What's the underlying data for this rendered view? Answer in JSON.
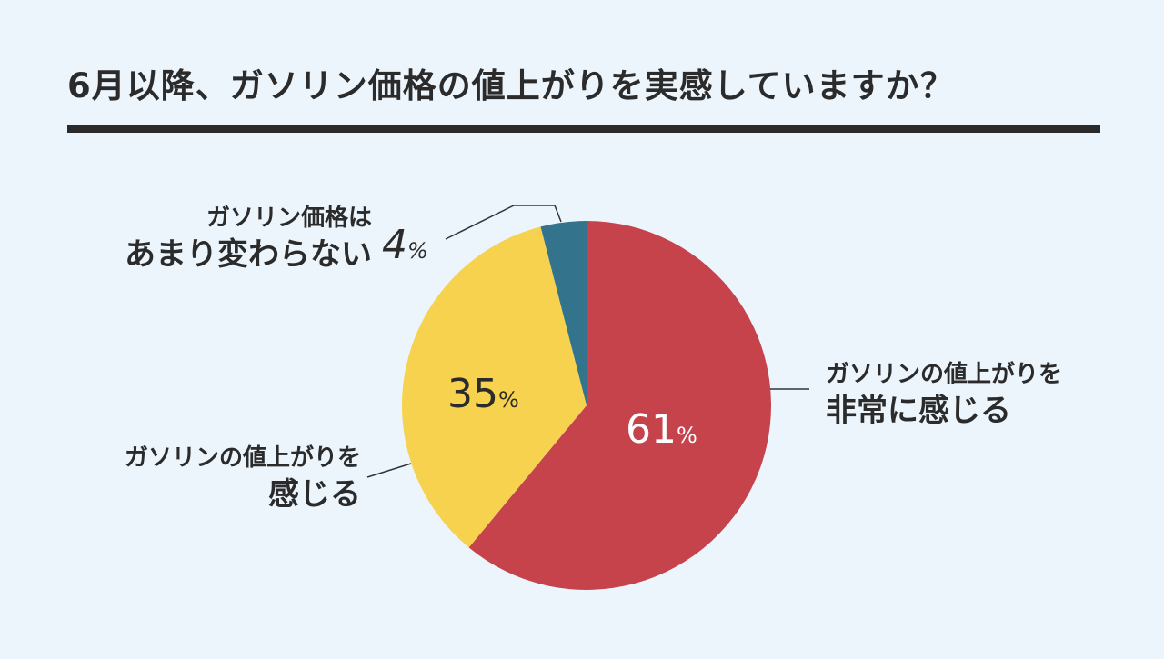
{
  "title": "6月以降、ガソリン価格の値上がりを実感していますか？",
  "chart_data": {
    "type": "pie",
    "title": "6月以降、ガソリン価格の値上がりを実感していますか？",
    "start_angle_deg": 0,
    "direction": "clockwise",
    "slices": [
      {
        "label_line1": "ガソリンの値上がりを",
        "label_line2": "非常に感じる",
        "value": 61,
        "value_text": "61",
        "unit": "%",
        "color": "#c6434c"
      },
      {
        "label_line1": "ガソリンの値上がりを",
        "label_line2": "感じる",
        "value": 35,
        "value_text": "35",
        "unit": "%",
        "color": "#f7d24f"
      },
      {
        "label_line1": "ガソリン価格は",
        "label_line2": "あまり変わらない",
        "value": 4,
        "value_text": "4",
        "unit": "%",
        "color": "#33738c"
      }
    ]
  }
}
